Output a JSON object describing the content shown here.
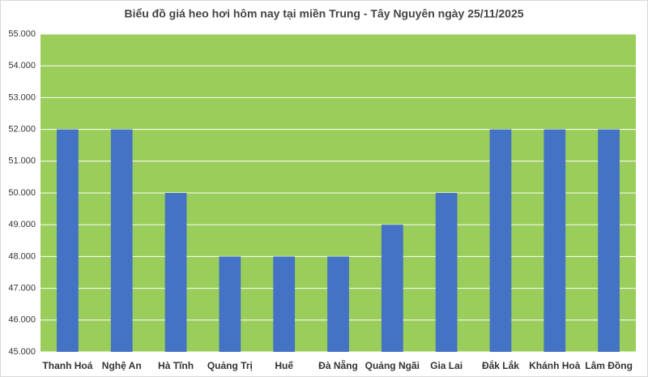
{
  "chart_data": {
    "type": "bar",
    "title": "Biểu đồ giá heo hơi hôm nay tại miền Trung - Tây Nguyên ngày 25/11/2025",
    "categories": [
      "Thanh Hoá",
      "Nghệ An",
      "Hà Tĩnh",
      "Quảng Trị",
      "Huế",
      "Đà Nẵng",
      "Quảng Ngãi",
      "Gia Lai",
      "Đắk Lắk",
      "Khánh Hoà",
      "Lâm Đồng"
    ],
    "values": [
      52000,
      52000,
      50000,
      48000,
      48000,
      48000,
      49000,
      50000,
      52000,
      52000,
      52000
    ],
    "color": "#4472c4",
    "ylim": [
      45000,
      55000
    ],
    "yticks": [
      {
        "value": 45000,
        "label": "45.000"
      },
      {
        "value": 46000,
        "label": "46.000"
      },
      {
        "value": 47000,
        "label": "47.000"
      },
      {
        "value": 48000,
        "label": "48.000"
      },
      {
        "value": 49000,
        "label": "49.000"
      },
      {
        "value": 50000,
        "label": "50.000"
      },
      {
        "value": 51000,
        "label": "51.000"
      },
      {
        "value": 52000,
        "label": "52.000"
      },
      {
        "value": 53000,
        "label": "53.000"
      },
      {
        "value": 54000,
        "label": "54.000"
      },
      {
        "value": 55000,
        "label": "55.000"
      }
    ],
    "grid": true
  }
}
